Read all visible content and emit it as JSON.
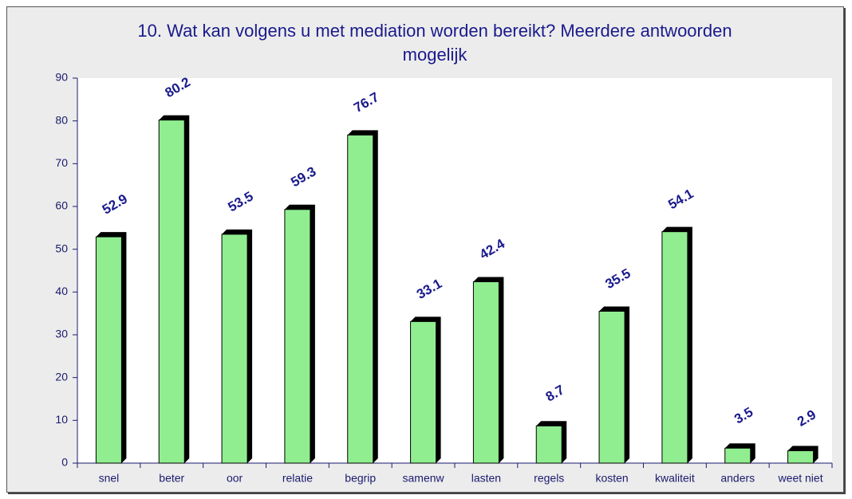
{
  "chart_data": {
    "type": "bar",
    "title": "10. Wat kan volgens u met mediation worden bereikt? Meerdere antwoorden mogelijk",
    "categories": [
      "snel",
      "beter",
      "oor",
      "relatie",
      "begrip",
      "samenw",
      "lasten",
      "regels",
      "kosten",
      "kwaliteit",
      "anders",
      "weet niet"
    ],
    "values": [
      52.9,
      80.2,
      53.5,
      59.3,
      76.7,
      33.1,
      42.4,
      8.7,
      35.5,
      54.1,
      3.5,
      2.9
    ],
    "color": "#90ee90",
    "ylim": [
      0,
      90
    ],
    "yticks": [
      0,
      10,
      20,
      30,
      40,
      50,
      60,
      70,
      80,
      90
    ],
    "grid": false
  }
}
